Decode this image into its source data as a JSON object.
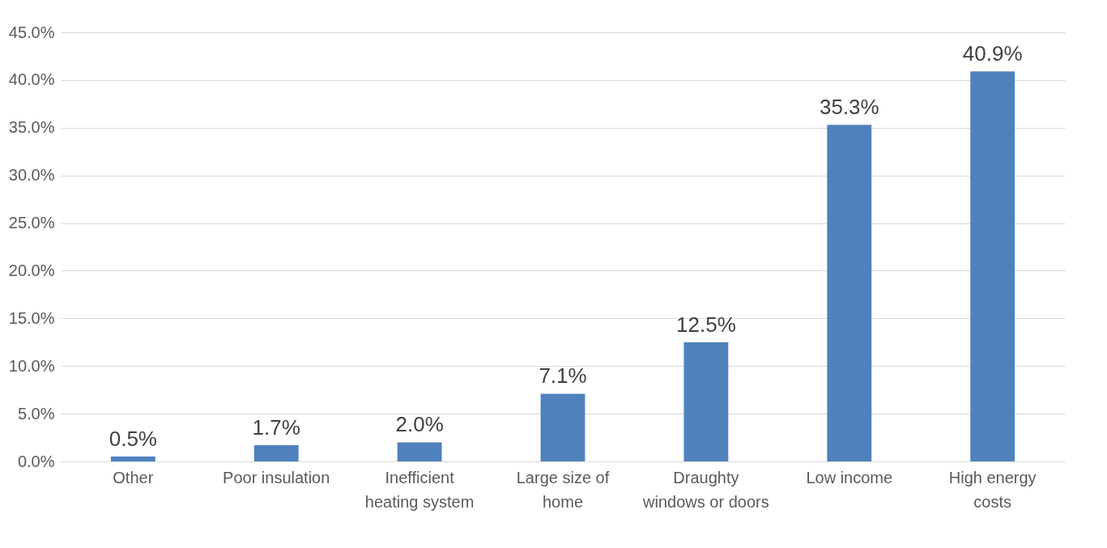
{
  "chart_data": {
    "type": "bar",
    "categories": [
      "Other",
      "Poor insulation",
      "Inefficient heating system",
      "Large size of home",
      "Draughty windows or doors",
      "Low income",
      "High energy costs"
    ],
    "values": [
      0.5,
      1.7,
      2.0,
      7.1,
      12.5,
      35.3,
      40.9
    ],
    "value_labels": [
      "0.5%",
      "1.7%",
      "2.0%",
      "7.1%",
      "12.5%",
      "35.3%",
      "40.9%"
    ],
    "color": "#4f81bd",
    "ylim": [
      0,
      45
    ],
    "yticks": [
      {
        "value": 0,
        "label": "0.0%"
      },
      {
        "value": 5,
        "label": "5.0%"
      },
      {
        "value": 10,
        "label": "10.0%"
      },
      {
        "value": 15,
        "label": "15.0%"
      },
      {
        "value": 20,
        "label": "20.0%"
      },
      {
        "value": 25,
        "label": "25.0%"
      },
      {
        "value": 30,
        "label": "30.0%"
      },
      {
        "value": 35,
        "label": "35.0%"
      },
      {
        "value": 40,
        "label": "40.0%"
      },
      {
        "value": 45,
        "label": "45.0%"
      }
    ],
    "grid": true
  }
}
